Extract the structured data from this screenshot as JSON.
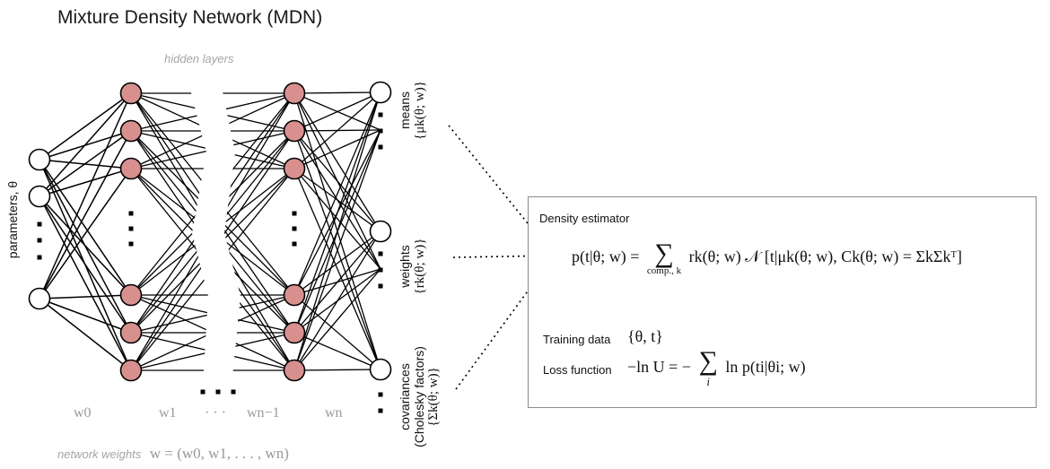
{
  "title": "Mixture Density Network (MDN)",
  "hidden_layers_label": "hidden layers",
  "input_label": "parameters, θ",
  "output_groups": {
    "means": {
      "name": "means",
      "symbol": "{μk(θ; w)}"
    },
    "weights": {
      "name": "weights",
      "symbol": "{rk(θ; w)}"
    },
    "covariances": {
      "name": "covariances",
      "sub": "(Cholesky factors)",
      "symbol": "{Σk(θ; w)}"
    }
  },
  "layer_weights": [
    "w0",
    "w1",
    "· · ·",
    "wn−1",
    "wn"
  ],
  "network_weights_caption": {
    "text": "network weights",
    "math": "w = (w0, w1, . . . , wn)"
  },
  "estimator": {
    "title": "Density estimator",
    "density_lhs": "p(t|θ; w) =",
    "sum_sub": "comp., k",
    "density_rhs": "rk(θ; w) 𝒩 [t|μk(θ; w), Ck(θ; w) = ΣkΣkᵀ]",
    "training_label": "Training data",
    "training_math": "{θ, t}",
    "loss_label": "Loss function",
    "loss_lhs": "−ln U = −",
    "loss_sub": "i",
    "loss_rhs": "ln p(ti|θi; w)"
  },
  "colors": {
    "hidden_node_fill": "#d7908e",
    "node_stroke": "#000000",
    "muted_text": "#a5a5a5",
    "box_border": "#8a8a8a"
  }
}
